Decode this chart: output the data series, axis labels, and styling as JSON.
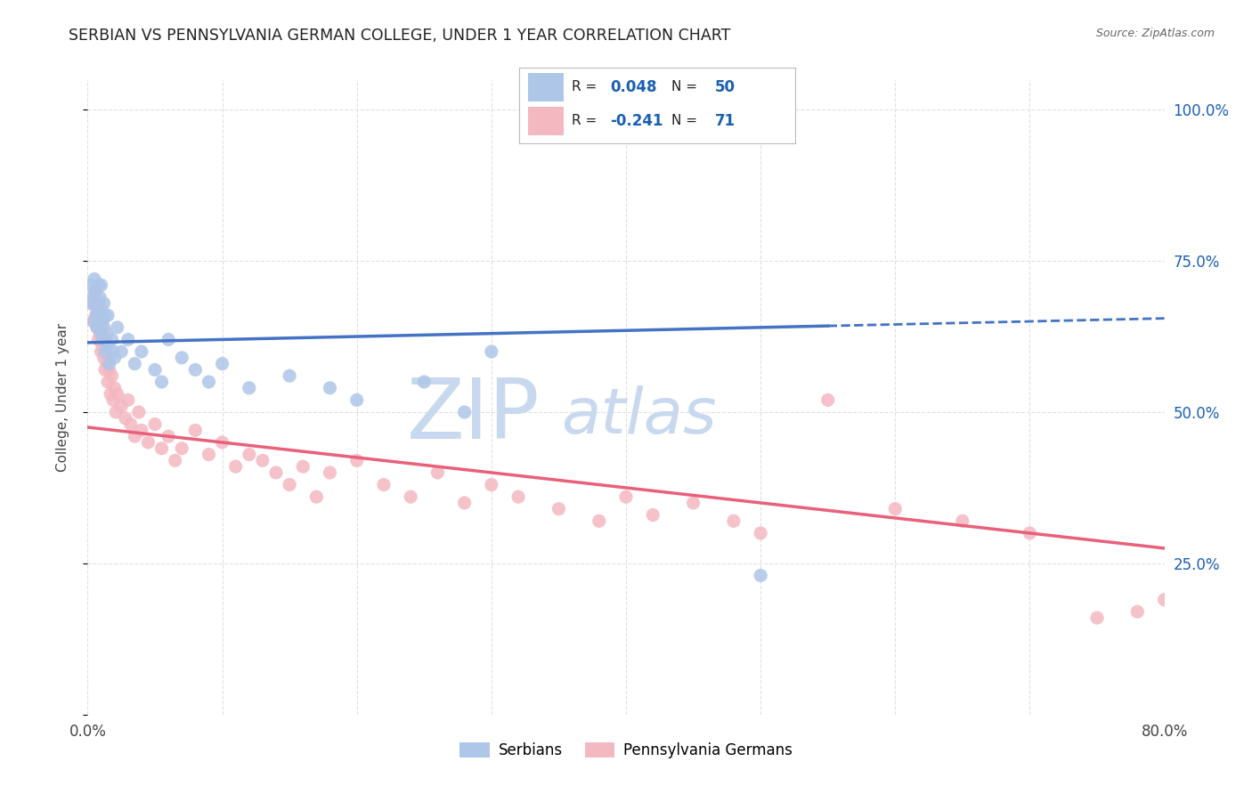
{
  "title": "SERBIAN VS PENNSYLVANIA GERMAN COLLEGE, UNDER 1 YEAR CORRELATION CHART",
  "source_text": "Source: ZipAtlas.com",
  "ylabel": "College, Under 1 year",
  "serbian_color": "#aec6e8",
  "pg_color": "#f4b8c1",
  "serbian_line_color": "#4472c4",
  "pg_line_color": "#e8607a",
  "watermark_zip": "ZIP",
  "watermark_atlas": "atlas",
  "watermark_color_zip": "#c8d8ee",
  "watermark_color_atlas": "#c8d8ee",
  "background_color": "#ffffff",
  "grid_color": "#e0e0e0",
  "title_color": "#222222",
  "source_color": "#666666",
  "r_value_color": "#1a5fb4",
  "n_value_color": "#1a5fb4",
  "xlim": [
    0.0,
    0.8
  ],
  "ylim": [
    0.0,
    1.05
  ],
  "serbian_trend_solid_end": 0.55,
  "serbian_trend_start_y": 0.615,
  "serbian_trend_end_y": 0.655,
  "pg_trend_start_y": 0.475,
  "pg_trend_end_y": 0.275,
  "serbian_x": [
    0.002,
    0.003,
    0.004,
    0.005,
    0.005,
    0.006,
    0.006,
    0.007,
    0.007,
    0.007,
    0.008,
    0.008,
    0.009,
    0.009,
    0.01,
    0.01,
    0.01,
    0.011,
    0.011,
    0.012,
    0.012,
    0.013,
    0.013,
    0.014,
    0.015,
    0.015,
    0.016,
    0.018,
    0.019,
    0.02,
    0.022,
    0.025,
    0.03,
    0.035,
    0.04,
    0.05,
    0.055,
    0.06,
    0.07,
    0.08,
    0.09,
    0.1,
    0.12,
    0.15,
    0.18,
    0.2,
    0.25,
    0.3,
    0.5,
    0.28
  ],
  "serbian_y": [
    0.68,
    0.71,
    0.69,
    0.65,
    0.72,
    0.68,
    0.7,
    0.66,
    0.64,
    0.67,
    0.71,
    0.68,
    0.65,
    0.69,
    0.63,
    0.67,
    0.71,
    0.65,
    0.62,
    0.68,
    0.64,
    0.66,
    0.6,
    0.63,
    0.61,
    0.66,
    0.58,
    0.62,
    0.6,
    0.59,
    0.64,
    0.6,
    0.62,
    0.58,
    0.6,
    0.57,
    0.55,
    0.62,
    0.59,
    0.57,
    0.55,
    0.58,
    0.54,
    0.56,
    0.54,
    0.52,
    0.55,
    0.6,
    0.23,
    0.5
  ],
  "pg_x": [
    0.003,
    0.004,
    0.005,
    0.006,
    0.007,
    0.007,
    0.008,
    0.008,
    0.009,
    0.009,
    0.01,
    0.01,
    0.011,
    0.011,
    0.012,
    0.013,
    0.013,
    0.014,
    0.015,
    0.016,
    0.017,
    0.018,
    0.019,
    0.02,
    0.021,
    0.022,
    0.025,
    0.028,
    0.03,
    0.032,
    0.035,
    0.038,
    0.04,
    0.045,
    0.05,
    0.055,
    0.06,
    0.065,
    0.07,
    0.08,
    0.09,
    0.1,
    0.11,
    0.12,
    0.13,
    0.14,
    0.15,
    0.16,
    0.17,
    0.18,
    0.2,
    0.22,
    0.24,
    0.26,
    0.28,
    0.3,
    0.32,
    0.35,
    0.38,
    0.4,
    0.42,
    0.45,
    0.48,
    0.5,
    0.55,
    0.6,
    0.65,
    0.7,
    0.75,
    0.78,
    0.8
  ],
  "pg_y": [
    0.68,
    0.65,
    0.7,
    0.66,
    0.64,
    0.68,
    0.62,
    0.65,
    0.63,
    0.66,
    0.6,
    0.64,
    0.61,
    0.65,
    0.59,
    0.57,
    0.62,
    0.58,
    0.55,
    0.57,
    0.53,
    0.56,
    0.52,
    0.54,
    0.5,
    0.53,
    0.51,
    0.49,
    0.52,
    0.48,
    0.46,
    0.5,
    0.47,
    0.45,
    0.48,
    0.44,
    0.46,
    0.42,
    0.44,
    0.47,
    0.43,
    0.45,
    0.41,
    0.43,
    0.42,
    0.4,
    0.38,
    0.41,
    0.36,
    0.4,
    0.42,
    0.38,
    0.36,
    0.4,
    0.35,
    0.38,
    0.36,
    0.34,
    0.32,
    0.36,
    0.33,
    0.35,
    0.32,
    0.3,
    0.52,
    0.34,
    0.32,
    0.3,
    0.16,
    0.17,
    0.19
  ]
}
